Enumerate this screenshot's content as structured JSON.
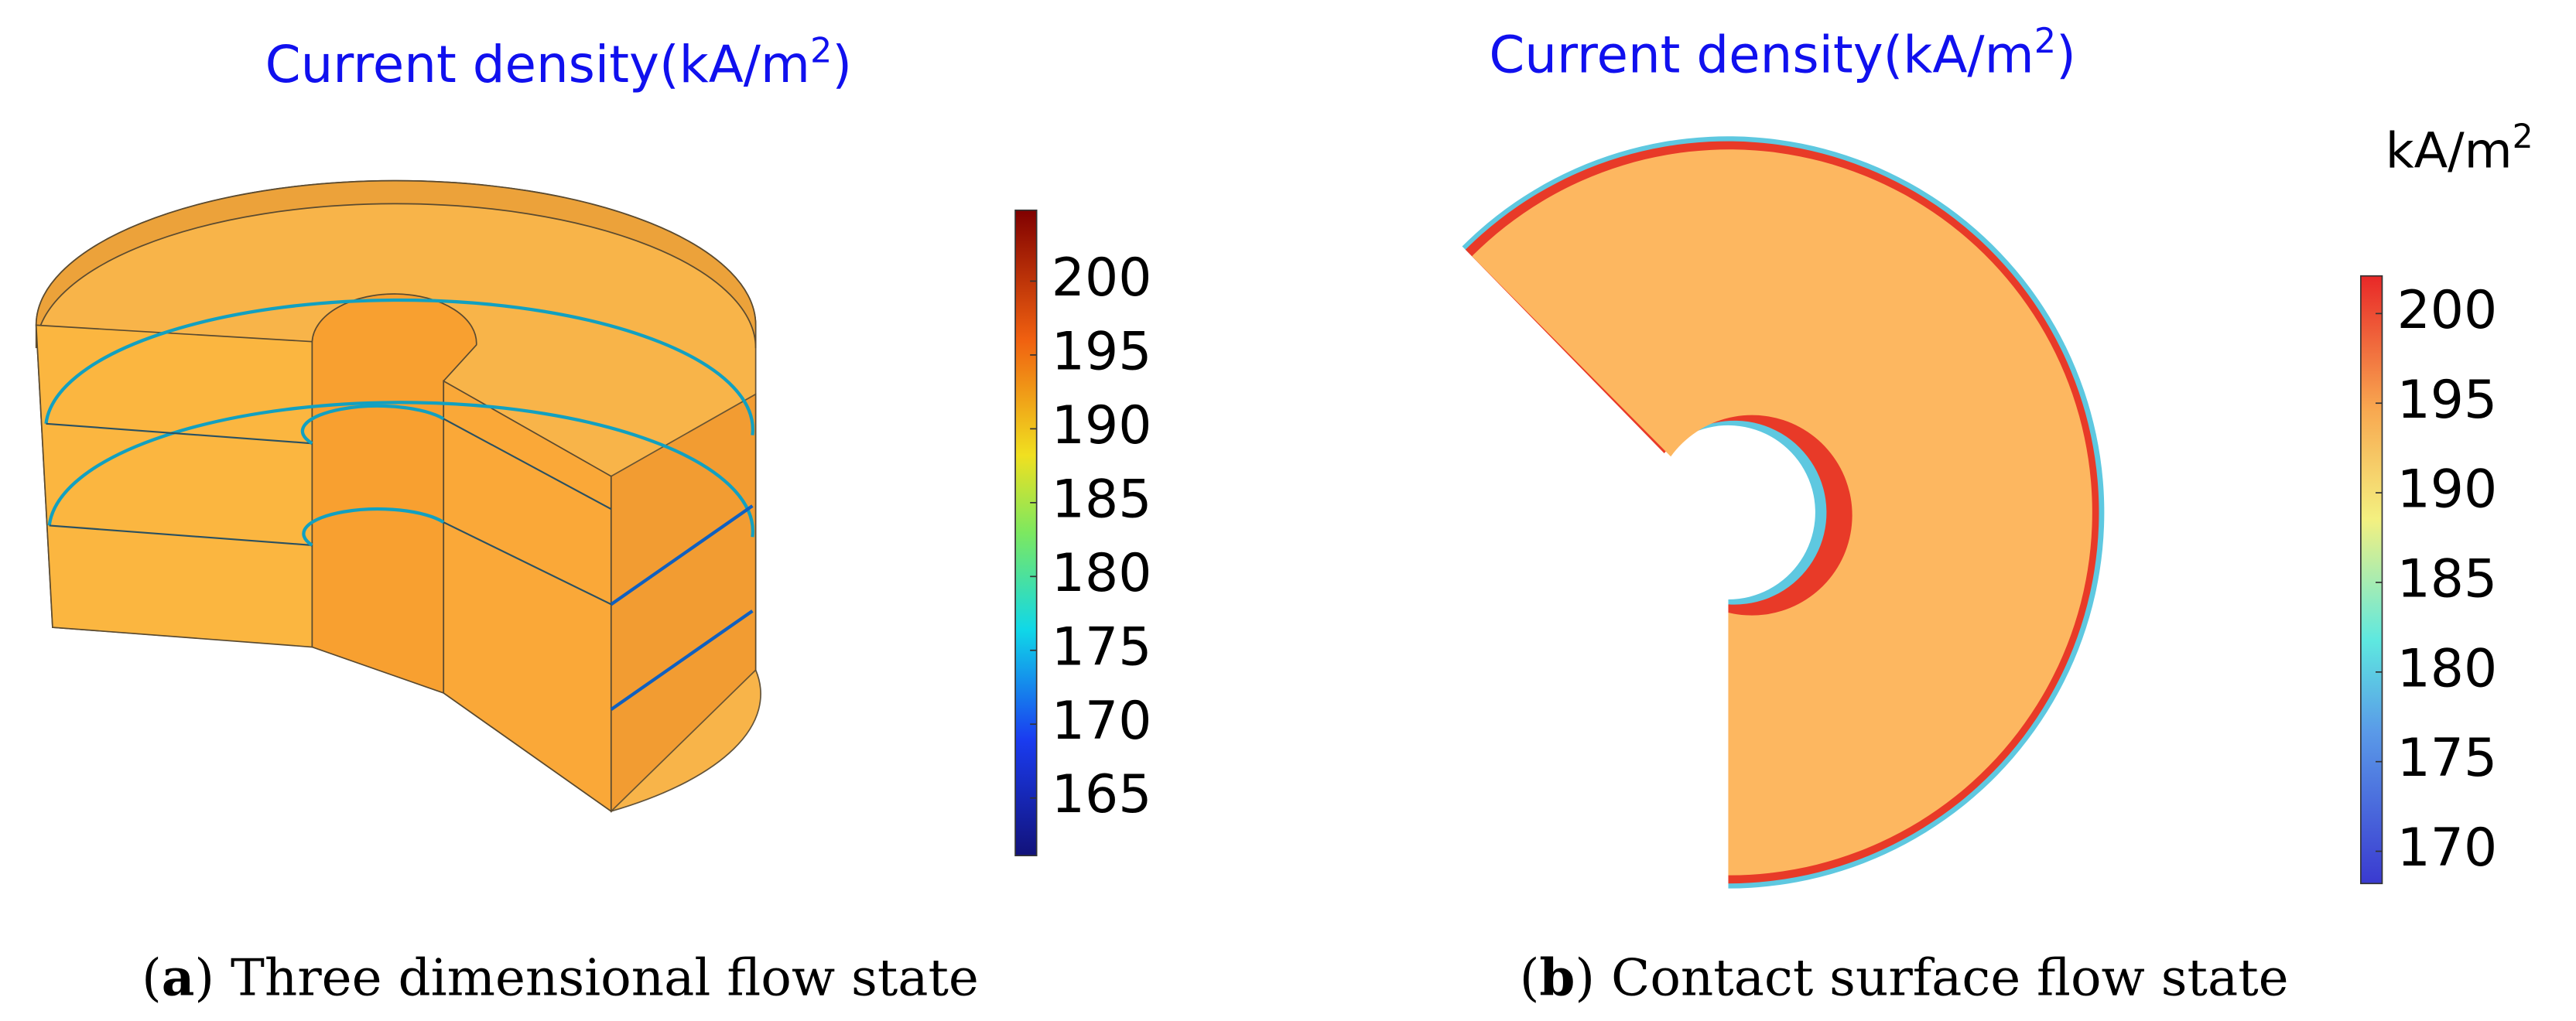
{
  "panels": [
    {
      "title": {
        "text": "Current density(kA/m",
        "sup": "2",
        "tail": ")"
      },
      "colorbar": {
        "range": [
          161.1,
          204.8
        ],
        "ticks": [
          165,
          170,
          175,
          180,
          185,
          190,
          195,
          200
        ]
      },
      "caption": {
        "open": "(",
        "label": "a",
        "text": ") Three dimensional flow state"
      }
    },
    {
      "title": {
        "text": "Current density(kA/m",
        "sup": "2",
        "tail": ")"
      },
      "unit": {
        "text": "kA/m",
        "sup": "2"
      },
      "colorbar": {
        "range": [
          168.2,
          202.1
        ],
        "ticks": [
          170,
          175,
          180,
          185,
          190,
          195,
          200
        ]
      },
      "caption": {
        "open": "(",
        "label": "b",
        "text": ") Contact surface flow state"
      }
    }
  ]
}
